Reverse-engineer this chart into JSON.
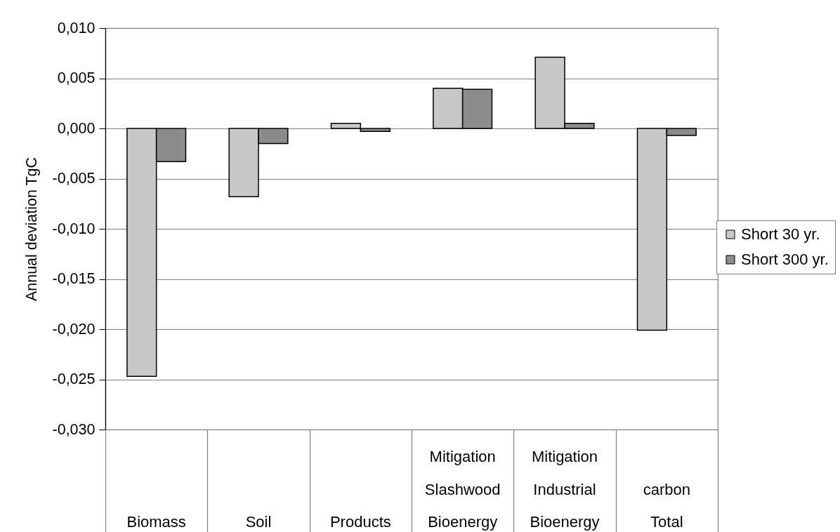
{
  "chart_data": {
    "type": "bar",
    "ylabel": "Annual deviation TgC",
    "categories": [
      "Biomass",
      "Soil",
      "Products",
      "Mitigation\nSlashwood\nBioenergy",
      "Mitigation\nIndustrial\nBioenergy",
      "carbon\nTotal"
    ],
    "series": [
      {
        "name": "Short 30 yr.",
        "color": "#c8c8c8",
        "values": [
          -0.0247,
          -0.0068,
          0.0005,
          0.004,
          0.0071,
          -0.0201
        ]
      },
      {
        "name": "Short 300 yr.",
        "color": "#8c8c8c",
        "values": [
          -0.0033,
          -0.0015,
          -0.0003,
          0.0039,
          0.0005,
          -0.0007
        ]
      }
    ],
    "ylim": [
      -0.03,
      0.01
    ],
    "yticks": [
      {
        "value": 0.01,
        "label": "0,010"
      },
      {
        "value": 0.005,
        "label": "0,005"
      },
      {
        "value": 0,
        "label": "0,000"
      },
      {
        "value": -0.005,
        "label": "-0,005"
      },
      {
        "value": -0.01,
        "label": "-0,010"
      },
      {
        "value": -0.015,
        "label": "-0,015"
      },
      {
        "value": -0.02,
        "label": "-0,020"
      },
      {
        "value": -0.025,
        "label": "-0,025"
      },
      {
        "value": -0.03,
        "label": "-0,030"
      }
    ],
    "grid": "y",
    "legend": "right"
  }
}
